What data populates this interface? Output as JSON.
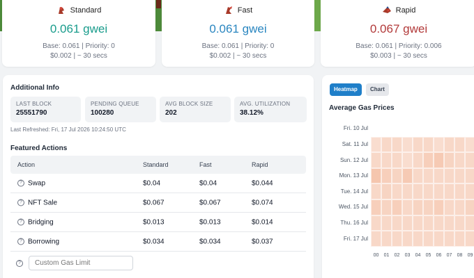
{
  "gas_cards": [
    {
      "name": "Standard",
      "price": "0.061 gwei",
      "base_priority": "Base: 0.061 | Priority: 0",
      "cost_time": "$0.002 | ~ 30 secs",
      "color": "#1a9c8c"
    },
    {
      "name": "Fast",
      "price": "0.061 gwei",
      "base_priority": "Base: 0.061 | Priority: 0",
      "cost_time": "$0.002 | ~ 30 secs",
      "color": "#2a86c0"
    },
    {
      "name": "Rapid",
      "price": "0.067 gwei",
      "base_priority": "Base: 0.061 | Priority: 0.006",
      "cost_time": "$0.003 | ~ 30 secs",
      "color": "#b23a3a"
    }
  ],
  "additional_info": {
    "title": "Additional Info",
    "stats": [
      {
        "label": "LAST BLOCK",
        "value": "25551790"
      },
      {
        "label": "PENDING QUEUE",
        "value": "100280"
      },
      {
        "label": "AVG BLOCK SIZE",
        "value": "202"
      },
      {
        "label": "AVG. UTILIZATION",
        "value": "38.12%"
      }
    ],
    "last_refreshed": "Last Refreshed: Fri, 17 Jul 2026 10:24:50 UTC"
  },
  "featured_actions": {
    "title": "Featured Actions",
    "headers": [
      "Action",
      "Standard",
      "Fast",
      "Rapid"
    ],
    "rows": [
      {
        "action": "Swap",
        "standard": "$0.04",
        "fast": "$0.04",
        "rapid": "$0.044"
      },
      {
        "action": "NFT Sale",
        "standard": "$0.067",
        "fast": "$0.067",
        "rapid": "$0.074"
      },
      {
        "action": "Bridging",
        "standard": "$0.013",
        "fast": "$0.013",
        "rapid": "$0.014"
      },
      {
        "action": "Borrowing",
        "standard": "$0.034",
        "fast": "$0.034",
        "rapid": "$0.037"
      }
    ],
    "custom_placeholder": "Custom Gas Limit"
  },
  "chart_panel": {
    "tabs": [
      "Heatmap",
      "Chart"
    ],
    "active_tab": "Heatmap",
    "title": "Average Gas Prices"
  },
  "chart_data": {
    "type": "heatmap",
    "title": "Average Gas Prices",
    "y_categories": [
      "Fri. 10 Jul",
      "Sat. 11 Jul",
      "Sun. 12 Jul",
      "Mon. 13 Jul",
      "Tue. 14 Jul",
      "Wed. 15 Jul",
      "Thu. 16 Jul",
      "Fri. 17 Jul"
    ],
    "x_categories": [
      "00",
      "01",
      "02",
      "03",
      "04",
      "05",
      "06",
      "07",
      "08",
      "09"
    ],
    "values": [
      [
        null,
        null,
        null,
        null,
        null,
        null,
        null,
        null,
        null,
        null
      ],
      [
        0.2,
        0.3,
        0.3,
        0.2,
        0.3,
        0.3,
        0.2,
        0.3,
        0.3,
        0.2
      ],
      [
        0.3,
        0.3,
        0.3,
        0.2,
        0.3,
        0.5,
        0.6,
        0.4,
        0.3,
        0.3
      ],
      [
        0.7,
        0.5,
        0.4,
        0.6,
        0.3,
        0.3,
        0.3,
        0.3,
        0.3,
        0.3
      ],
      [
        0.3,
        0.4,
        0.3,
        0.3,
        0.3,
        0.3,
        0.3,
        0.3,
        0.3,
        0.3
      ],
      [
        0.5,
        0.4,
        0.5,
        0.3,
        0.4,
        0.4,
        0.5,
        0.3,
        0.3,
        0.4
      ],
      [
        0.3,
        0.3,
        0.3,
        0.3,
        0.3,
        0.3,
        0.3,
        0.3,
        0.3,
        0.3
      ],
      [
        0.3,
        0.3,
        0.3,
        0.3,
        0.3,
        0.3,
        0.3,
        0.3,
        0.3,
        0.3
      ]
    ],
    "color_low": "#fbe6dc",
    "color_high": "#f2b89a"
  }
}
